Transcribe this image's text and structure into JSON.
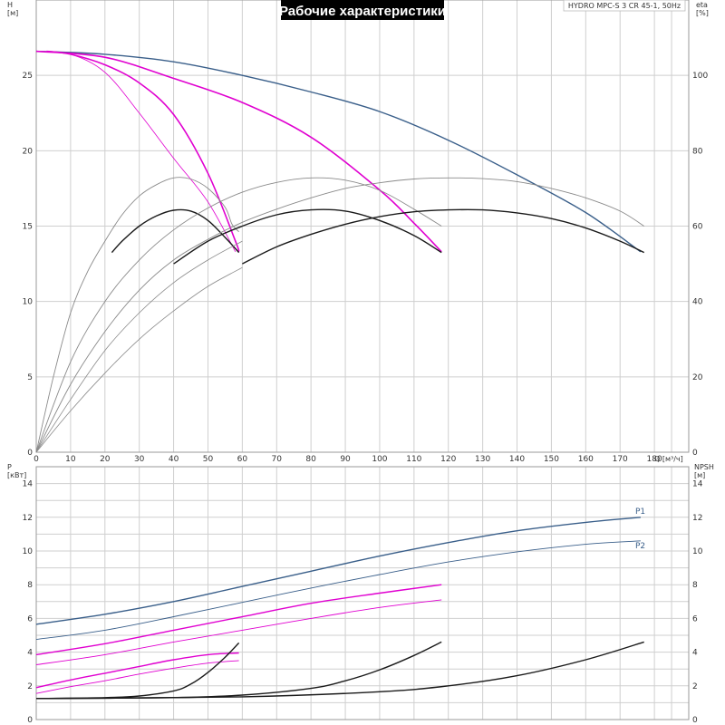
{
  "title": "Рабочие характеристики",
  "model_label": "HYDRO MPC-S 3 CR 45-1, 50Hz",
  "colors": {
    "blue": "#3a5f8a",
    "magenta": "#e000d0",
    "black": "#1a1a1a",
    "gray": "#8a8a8a",
    "grid": "#cfcfcf"
  },
  "chart_data": [
    {
      "type": "line",
      "xlabel": "Q [м³/ч]",
      "ylabel": "H [м]",
      "y2label": "eta [%]",
      "x_ticks": [
        0,
        10,
        20,
        30,
        40,
        50,
        60,
        70,
        80,
        90,
        100,
        110,
        120,
        130,
        140,
        150,
        160,
        170,
        180
      ],
      "y_ticks": [
        0,
        5,
        10,
        15,
        20,
        25
      ],
      "y2_ticks": [
        0,
        20,
        40,
        60,
        80,
        100
      ],
      "xlim": [
        0,
        190
      ],
      "ylim": [
        0,
        30
      ],
      "y2lim": [
        0,
        120
      ],
      "grid": true,
      "series": [
        {
          "axis": "left",
          "color": "blue",
          "width": 1.4,
          "points": [
            [
              0,
              26.6
            ],
            [
              20,
              26.4
            ],
            [
              40,
              25.9
            ],
            [
              60,
              25.0
            ],
            [
              80,
              23.9
            ],
            [
              100,
              22.6
            ],
            [
              120,
              20.7
            ],
            [
              140,
              18.4
            ],
            [
              160,
              15.9
            ],
            [
              176,
              13.3
            ]
          ]
        },
        {
          "axis": "left",
          "color": "magenta",
          "width": 1.6,
          "points": [
            [
              3,
              26.6
            ],
            [
              10,
              26.4
            ],
            [
              20,
              25.7
            ],
            [
              30,
              24.5
            ],
            [
              40,
              22.4
            ],
            [
              50,
              18.5
            ],
            [
              58,
              14.0
            ],
            [
              59,
              13.3
            ]
          ]
        },
        {
          "axis": "left",
          "color": "magenta",
          "width": 1.6,
          "points": [
            [
              0,
              26.6
            ],
            [
              20,
              26.2
            ],
            [
              40,
              24.8
            ],
            [
              60,
              23.2
            ],
            [
              80,
              20.9
            ],
            [
              100,
              17.4
            ],
            [
              110,
              15.2
            ],
            [
              118,
              13.3
            ]
          ]
        },
        {
          "axis": "left",
          "color": "magenta",
          "width": 0.8,
          "points": [
            [
              0,
              26.6
            ],
            [
              10,
              26.4
            ],
            [
              20,
              25.2
            ],
            [
              30,
              22.5
            ],
            [
              40,
              19.5
            ],
            [
              50,
              16.6
            ],
            [
              58,
              13.3
            ]
          ]
        },
        {
          "axis": "right",
          "color": "gray",
          "width": 0.9,
          "points": [
            [
              0,
              0
            ],
            [
              5,
              20
            ],
            [
              10,
              37
            ],
            [
              15,
              48
            ],
            [
              20,
              56
            ],
            [
              25,
              63
            ],
            [
              30,
              68
            ],
            [
              35,
              71
            ],
            [
              40,
              72.8
            ],
            [
              45,
              72.5
            ],
            [
              50,
              70
            ],
            [
              55,
              65
            ],
            [
              57,
              60.5
            ],
            [
              59,
              58.5
            ]
          ]
        },
        {
          "axis": "right",
          "color": "black",
          "width": 1.4,
          "points": [
            [
              22,
              53
            ],
            [
              25,
              56
            ],
            [
              30,
              60
            ],
            [
              35,
              62.7
            ],
            [
              40,
              64.2
            ],
            [
              45,
              64
            ],
            [
              50,
              61.5
            ],
            [
              55,
              57
            ],
            [
              59,
              53
            ]
          ]
        },
        {
          "axis": "right",
          "color": "gray",
          "width": 0.9,
          "points": [
            [
              0,
              0
            ],
            [
              10,
              24
            ],
            [
              20,
              40
            ],
            [
              30,
              51
            ],
            [
              40,
              59
            ],
            [
              50,
              64.8
            ],
            [
              60,
              69
            ],
            [
              70,
              71.6
            ],
            [
              80,
              72.8
            ],
            [
              90,
              72.2
            ],
            [
              100,
              69.5
            ],
            [
              110,
              64.5
            ],
            [
              118,
              60
            ]
          ]
        },
        {
          "axis": "right",
          "color": "black",
          "width": 1.4,
          "points": [
            [
              40,
              50
            ],
            [
              50,
              56
            ],
            [
              60,
              60
            ],
            [
              70,
              63
            ],
            [
              80,
              64.3
            ],
            [
              90,
              64
            ],
            [
              100,
              61.5
            ],
            [
              110,
              57.5
            ],
            [
              118,
              53
            ]
          ]
        },
        {
          "axis": "right",
          "color": "gray",
          "width": 0.9,
          "points": [
            [
              0,
              0
            ],
            [
              10,
              18
            ],
            [
              20,
              32
            ],
            [
              30,
              43
            ],
            [
              40,
              51
            ],
            [
              50,
              56.5
            ],
            [
              60,
              61
            ],
            [
              70,
              64.5
            ],
            [
              80,
              67.5
            ],
            [
              90,
              70
            ],
            [
              100,
              71.5
            ],
            [
              110,
              72.5
            ],
            [
              120,
              72.8
            ],
            [
              130,
              72.6
            ],
            [
              140,
              71.8
            ],
            [
              150,
              70
            ],
            [
              160,
              67.5
            ],
            [
              170,
              64
            ],
            [
              177,
              60
            ]
          ]
        },
        {
          "axis": "right",
          "color": "black",
          "width": 1.4,
          "points": [
            [
              60,
              50
            ],
            [
              70,
              54.5
            ],
            [
              80,
              57.8
            ],
            [
              90,
              60.5
            ],
            [
              100,
              62.5
            ],
            [
              110,
              63.8
            ],
            [
              120,
              64.3
            ],
            [
              130,
              64.3
            ],
            [
              140,
              63.5
            ],
            [
              150,
              62
            ],
            [
              160,
              59.5
            ],
            [
              170,
              56
            ],
            [
              177,
              53
            ]
          ]
        },
        {
          "axis": "right",
          "color": "gray",
          "width": 0.8,
          "points": [
            [
              0,
              0
            ],
            [
              10,
              14
            ],
            [
              20,
              27
            ],
            [
              30,
              37
            ],
            [
              40,
              45
            ],
            [
              50,
              51
            ],
            [
              60,
              56
            ]
          ]
        },
        {
          "axis": "right",
          "color": "gray",
          "width": 0.8,
          "points": [
            [
              0,
              0
            ],
            [
              10,
              11
            ],
            [
              20,
              21
            ],
            [
              30,
              30
            ],
            [
              40,
              37.5
            ],
            [
              50,
              44
            ],
            [
              60,
              49
            ]
          ]
        }
      ]
    },
    {
      "type": "line",
      "ylabel": "P [кВт]",
      "y2label": "NPSH [м]",
      "x_ticks": [
        0,
        10,
        20,
        30,
        40,
        50,
        60,
        70,
        80,
        90,
        100,
        110,
        120,
        130,
        140,
        150,
        160,
        170,
        180
      ],
      "y_ticks": [
        0,
        2,
        4,
        6,
        8,
        10,
        12,
        14
      ],
      "y2_ticks": [
        0,
        2,
        4,
        6,
        8,
        10,
        12,
        14
      ],
      "xlim": [
        0,
        190
      ],
      "ylim": [
        0,
        15
      ],
      "grid": true,
      "series_labels": [
        "P1",
        "P2"
      ],
      "series": [
        {
          "name": "P1",
          "color": "blue",
          "width": 1.4,
          "points": [
            [
              0,
              5.65
            ],
            [
              20,
              6.25
            ],
            [
              40,
              7.0
            ],
            [
              60,
              7.9
            ],
            [
              80,
              8.8
            ],
            [
              100,
              9.7
            ],
            [
              120,
              10.5
            ],
            [
              140,
              11.2
            ],
            [
              160,
              11.7
            ],
            [
              176,
              12.0
            ]
          ]
        },
        {
          "name": "P2",
          "color": "blue",
          "width": 0.9,
          "points": [
            [
              0,
              4.75
            ],
            [
              20,
              5.3
            ],
            [
              40,
              6.1
            ],
            [
              60,
              6.95
            ],
            [
              80,
              7.8
            ],
            [
              100,
              8.6
            ],
            [
              120,
              9.35
            ],
            [
              140,
              9.95
            ],
            [
              160,
              10.4
            ],
            [
              176,
              10.6
            ]
          ]
        },
        {
          "color": "magenta",
          "width": 1.4,
          "points": [
            [
              0,
              3.85
            ],
            [
              20,
              4.5
            ],
            [
              40,
              5.3
            ],
            [
              60,
              6.1
            ],
            [
              80,
              6.9
            ],
            [
              100,
              7.5
            ],
            [
              118,
              8.0
            ]
          ]
        },
        {
          "color": "magenta",
          "width": 0.9,
          "points": [
            [
              0,
              3.25
            ],
            [
              20,
              3.85
            ],
            [
              40,
              4.6
            ],
            [
              60,
              5.3
            ],
            [
              80,
              6.0
            ],
            [
              100,
              6.65
            ],
            [
              118,
              7.1
            ]
          ]
        },
        {
          "color": "magenta",
          "width": 1.4,
          "points": [
            [
              0,
              1.9
            ],
            [
              10,
              2.35
            ],
            [
              20,
              2.75
            ],
            [
              30,
              3.15
            ],
            [
              40,
              3.55
            ],
            [
              50,
              3.85
            ],
            [
              59,
              3.95
            ]
          ]
        },
        {
          "color": "magenta",
          "width": 0.9,
          "points": [
            [
              0,
              1.55
            ],
            [
              10,
              1.95
            ],
            [
              20,
              2.3
            ],
            [
              30,
              2.7
            ],
            [
              40,
              3.05
            ],
            [
              50,
              3.35
            ],
            [
              59,
              3.5
            ]
          ]
        },
        {
          "color": "black",
          "width": 1.4,
          "points": [
            [
              0,
              1.25
            ],
            [
              20,
              1.3
            ],
            [
              30,
              1.4
            ],
            [
              40,
              1.7
            ],
            [
              45,
              2.1
            ],
            [
              50,
              2.8
            ],
            [
              55,
              3.7
            ],
            [
              59,
              4.55
            ]
          ]
        },
        {
          "color": "black",
          "width": 1.4,
          "points": [
            [
              0,
              1.25
            ],
            [
              40,
              1.3
            ],
            [
              60,
              1.45
            ],
            [
              80,
              1.85
            ],
            [
              90,
              2.3
            ],
            [
              100,
              2.95
            ],
            [
              110,
              3.8
            ],
            [
              118,
              4.6
            ]
          ]
        },
        {
          "color": "black",
          "width": 1.4,
          "points": [
            [
              0,
              1.25
            ],
            [
              60,
              1.35
            ],
            [
              100,
              1.65
            ],
            [
              120,
              2.0
            ],
            [
              140,
              2.6
            ],
            [
              160,
              3.55
            ],
            [
              177,
              4.6
            ]
          ]
        }
      ]
    }
  ]
}
